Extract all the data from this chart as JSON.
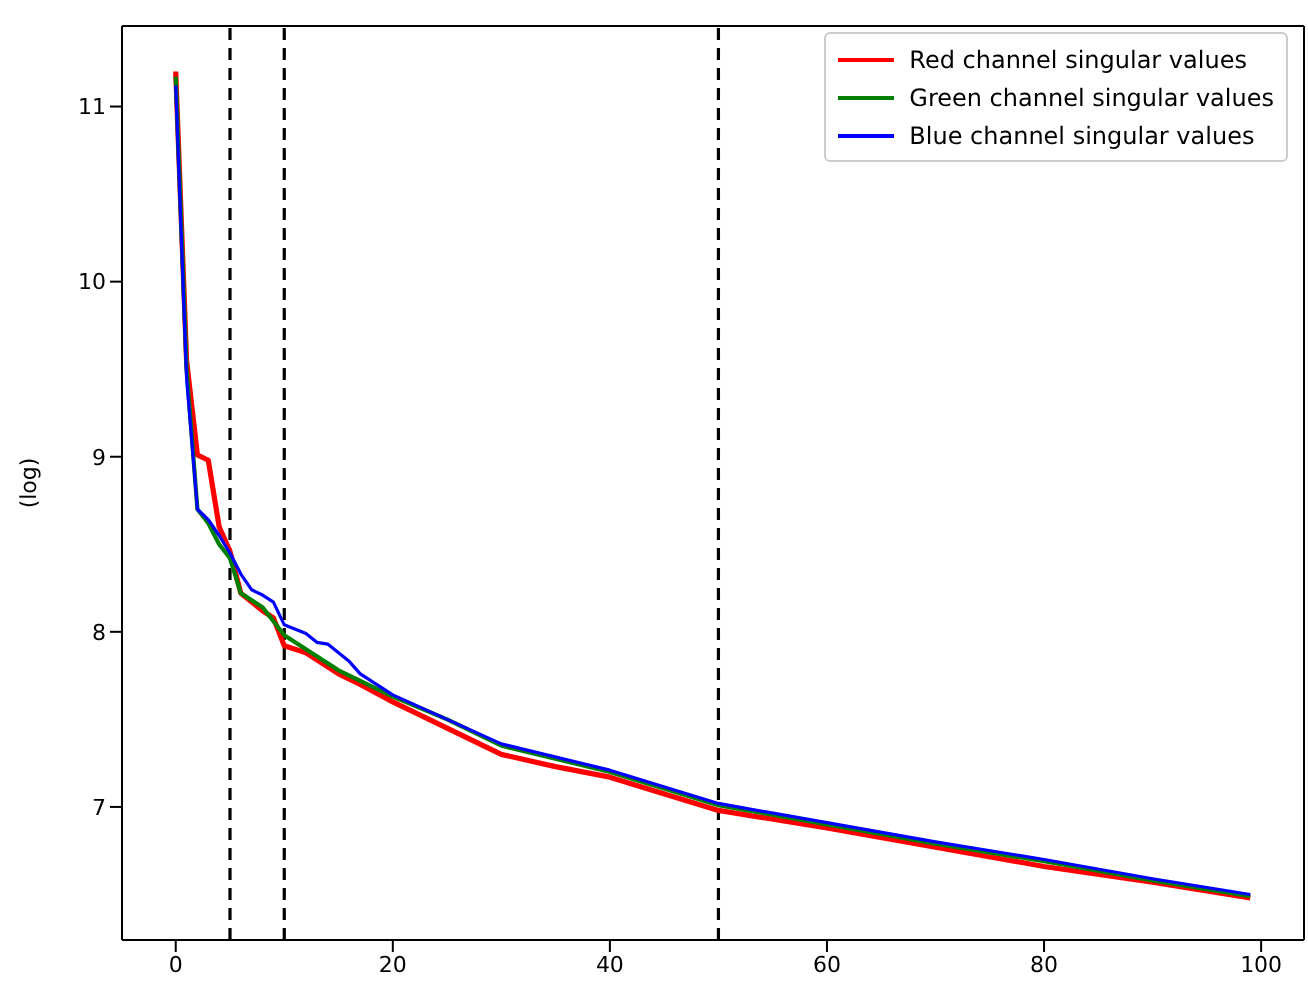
{
  "chart_data": {
    "type": "line",
    "ylabel": "(log)",
    "xlim": [
      -4.95,
      103.95
    ],
    "ylim": [
      6.24,
      11.46
    ],
    "xticks": [
      0,
      20,
      40,
      60,
      80,
      100
    ],
    "yticks": [
      7,
      8,
      9,
      10,
      11
    ],
    "grid": false,
    "legend": "top right",
    "marker": "none",
    "line_style": "solid",
    "ref_lines": [
      {
        "axis": "x",
        "value": 5,
        "color": "#000000",
        "line_style": "dashed"
      },
      {
        "axis": "x",
        "value": 10,
        "color": "#000000",
        "line_style": "dashed"
      },
      {
        "axis": "x",
        "value": 50,
        "color": "#000000",
        "line_style": "dashed"
      }
    ],
    "series": [
      {
        "name": "Red channel singular values",
        "color": "#ff0000",
        "x": [
          0,
          1,
          2,
          3,
          4,
          5,
          6,
          8,
          9,
          10,
          12,
          15,
          17,
          20,
          25,
          30,
          35,
          40,
          50,
          60,
          70,
          80,
          90,
          99
        ],
        "values": [
          11.2,
          9.55,
          9.01,
          8.98,
          8.6,
          8.46,
          8.22,
          8.12,
          8.08,
          7.92,
          7.88,
          7.76,
          7.7,
          7.6,
          7.45,
          7.3,
          7.23,
          7.17,
          6.98,
          6.88,
          6.77,
          6.66,
          6.57,
          6.48
        ]
      },
      {
        "name": "Green channel singular values",
        "color": "#008000",
        "x": [
          0,
          1,
          2,
          3,
          4,
          5,
          6,
          8,
          10,
          12,
          15,
          17,
          20,
          25,
          30,
          40,
          50,
          60,
          70,
          80,
          90,
          99
        ],
        "values": [
          11.17,
          9.5,
          8.7,
          8.62,
          8.5,
          8.42,
          8.22,
          8.14,
          7.98,
          7.9,
          7.78,
          7.72,
          7.63,
          7.5,
          7.35,
          7.2,
          7.01,
          6.9,
          6.79,
          6.69,
          6.58,
          6.49
        ]
      },
      {
        "name": "Blue channel singular values",
        "color": "#0000ff",
        "x": [
          0,
          1,
          2,
          3,
          4,
          5,
          6,
          7,
          8,
          9,
          10,
          12,
          13,
          14,
          16,
          17,
          18,
          20,
          25,
          30,
          40,
          50,
          60,
          70,
          80,
          90,
          99
        ],
        "values": [
          11.12,
          9.45,
          8.7,
          8.64,
          8.55,
          8.45,
          8.33,
          8.24,
          8.21,
          8.17,
          8.04,
          7.99,
          7.94,
          7.93,
          7.83,
          7.76,
          7.72,
          7.64,
          7.5,
          7.36,
          7.21,
          7.02,
          6.91,
          6.8,
          6.7,
          6.59,
          6.5
        ]
      }
    ]
  }
}
